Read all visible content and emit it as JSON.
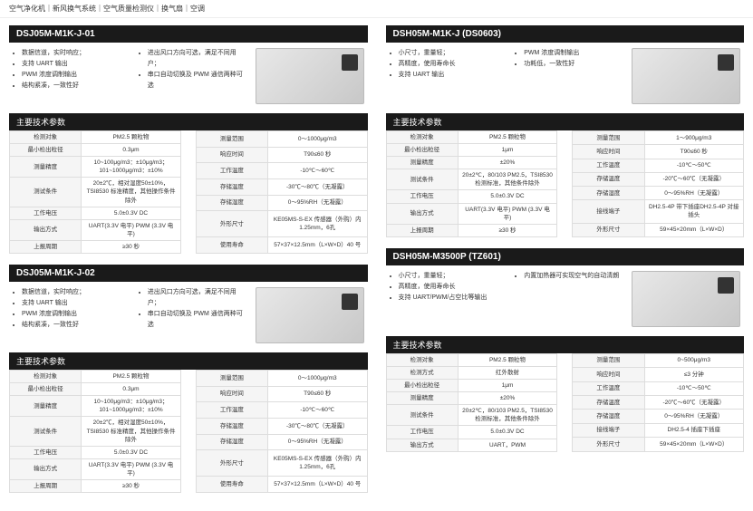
{
  "breadcrumb": "空气净化机｜新风换气系统｜空气质量检测仪｜换气扇｜空调",
  "subhead_label": "主要技术参数",
  "products": [
    {
      "title": "DSJ05M-M1K-J-01",
      "featL": [
        "数据信道，实时响应；",
        "支持 UART 输出",
        "PWM 浓度调制输出",
        "结构紧凑，一致性好"
      ],
      "featR": [
        "进出风口方向可选，满足不同用户；",
        "串口自动切换及 PWM 通信两种可选"
      ],
      "specL": [
        [
          "检测对象",
          "PM2.5 颗粒物"
        ],
        [
          "最小检出粒径",
          "0.3μm"
        ],
        [
          "测量精度",
          "10~100μg/m3：±10μg/m3；101~1000μg/m3：±10%"
        ],
        [
          "测试条件",
          "20±2℃，相对湿度50±10%，TSI8530 标准精度，其他操作条件除外"
        ],
        [
          "工作电压",
          "5.0±0.3V DC"
        ],
        [
          "输出方式",
          "UART(3.3V 电平) PWM (3.3V 电平)"
        ],
        [
          "上报周期",
          "≥30 秒"
        ]
      ],
      "specR": [
        [
          "测量范围",
          "0～1000μg/m3"
        ],
        [
          "响应时间",
          "T90≤60 秒"
        ],
        [
          "工作温度",
          "-10℃～60℃"
        ],
        [
          "存储温度",
          "-30℃～80℃（无凝露）"
        ],
        [
          "存储湿度",
          "0～95%RH（无凝露）"
        ],
        [
          "外形尺寸",
          "KE05MS-S-EX 传感器（外购）内 1.25mm，6孔"
        ],
        [
          "使用寿命",
          "57×37×12.5mm（L×W×D）40 号"
        ]
      ]
    },
    {
      "title": "DSJ05M-M1K-J-02",
      "featL": [
        "数据信道，实时响应；",
        "支持 UART 输出",
        "PWM 浓度调制输出",
        "结构紧凑，一致性好"
      ],
      "featR": [
        "进出风口方向可选，满足不同用户；",
        "串口自动切换及 PWM 通信两种可选"
      ],
      "specL": [
        [
          "检测对象",
          "PM2.5 颗粒物"
        ],
        [
          "最小检出粒径",
          "0.3μm"
        ],
        [
          "测量精度",
          "10~100μg/m3：±10μg/m3；101~1000μg/m3：±10%"
        ],
        [
          "测试条件",
          "20±2℃，相对湿度50±10%，TSI8530 标准精度，其他操作条件除外"
        ],
        [
          "工作电压",
          "5.0±0.3V DC"
        ],
        [
          "输出方式",
          "UART(3.3V 电平) PWM (3.3V 电平)"
        ],
        [
          "上报周期",
          "≥30 秒"
        ]
      ],
      "specR": [
        [
          "测量范围",
          "0～1000μg/m3"
        ],
        [
          "响应时间",
          "T90≤60 秒"
        ],
        [
          "工作温度",
          "-10℃～60℃"
        ],
        [
          "存储温度",
          "-30℃～80℃（无凝露）"
        ],
        [
          "存储湿度",
          "0～95%RH（无凝露）"
        ],
        [
          "外形尺寸",
          "KE05MS-S-EX 传感器（外购）内 1.25mm，6孔"
        ],
        [
          "使用寿命",
          "57×37×12.5mm（L×W×D）40 号"
        ]
      ]
    },
    {
      "title": "DSH05M-M1K-J (DS0603)",
      "featL": [
        "小尺寸，重量轻；",
        "高精度，使用寿命长",
        "支持 UART 输出"
      ],
      "featR": [
        "PWM 浓度调制输出",
        "功耗低，一致性好"
      ],
      "specL": [
        [
          "检测对象",
          "PM2.5 颗粒物"
        ],
        [
          "最小检出粒径",
          "1μm"
        ],
        [
          "测量精度",
          "±20%"
        ],
        [
          "测试条件",
          "20±2℃，80/103 PM2.5，TSI8530 检测标准，其他条件除外"
        ],
        [
          "工作电压",
          "5.0±0.3V DC"
        ],
        [
          "输出方式",
          "UART(3.3V 电平) PWM (3.3V 电平)"
        ],
        [
          "上报周期",
          "≥30 秒"
        ]
      ],
      "specR": [
        [
          "测量范围",
          "1～900μg/m3"
        ],
        [
          "响应时间",
          "T90≤60 秒"
        ],
        [
          "工作温度",
          "-10℃～50℃"
        ],
        [
          "存储温度",
          "-20℃～60℃（无凝露）"
        ],
        [
          "存储湿度",
          "0～95%RH（无凝露）"
        ],
        [
          "接线端子",
          "DH2.5-4P 带下插座DH2.5-4P 对接插头"
        ],
        [
          "外形尺寸",
          "59×45×20mm（L×W×D）"
        ]
      ]
    },
    {
      "title": "DSH05M-M3500P (TZ601)",
      "featL": [
        "小尺寸，重量轻；",
        "高精度，使用寿命长",
        "支持 UART/PWM/占空比等输出"
      ],
      "featR": [
        "内置加热器可实现空气的自动清朗"
      ],
      "specL": [
        [
          "检测对象",
          "PM2.5 颗粒物"
        ],
        [
          "检测方式",
          "红外散射"
        ],
        [
          "最小检出粒径",
          "1μm"
        ],
        [
          "测量精度",
          "±20%"
        ],
        [
          "测试条件",
          "20±2℃，80/103 PM2.5，TSI8530 检测标准，其他条件除外"
        ],
        [
          "工作电压",
          "5.0±0.3V DC"
        ],
        [
          "输出方式",
          "UART，PWM"
        ]
      ],
      "specR": [
        [
          "测量范围",
          "0~500μg/m3"
        ],
        [
          "响应时间",
          "≤3 分钟"
        ],
        [
          "工作温度",
          "-10℃～50℃"
        ],
        [
          "存储温度",
          "-20℃～60℃（无凝露）"
        ],
        [
          "存储湿度",
          "0～95%RH（无凝露）"
        ],
        [
          "接线端子",
          "DH2.5-4 插座下插座"
        ],
        [
          "外形尺寸",
          "59×45×20mm（L×W×D）"
        ]
      ]
    }
  ]
}
